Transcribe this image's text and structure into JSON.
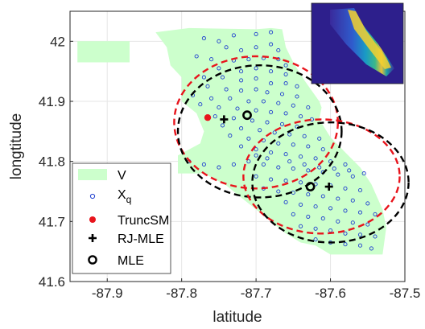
{
  "chart_data": {
    "type": "scatter",
    "title": "",
    "xlabel": "latitude",
    "ylabel": "longtitude",
    "xlim": [
      -87.95,
      -87.5
    ],
    "ylim": [
      41.6,
      42.05
    ],
    "xticks": [
      -87.9,
      -87.8,
      -87.7,
      -87.6,
      -87.5
    ],
    "yticks": [
      41.6,
      41.7,
      41.8,
      41.9,
      42
    ],
    "xtick_labels": [
      "-87.9",
      "-87.8",
      "-87.7",
      "-87.6",
      "-87.5"
    ],
    "ytick_labels": [
      "41.6",
      "41.7",
      "41.8",
      "41.9",
      "42"
    ],
    "grid": true,
    "legend_position": "bottom-left",
    "legend": [
      {
        "key": "V",
        "label": "V"
      },
      {
        "key": "Xq",
        "label": "X",
        "sub": "q"
      },
      {
        "key": "TruncSM",
        "label": "TruncSM"
      },
      {
        "key": "RJMLE",
        "label": "RJ-MLE"
      },
      {
        "key": "MLE",
        "label": "MLE"
      }
    ],
    "colors": {
      "region": "#ccffcc",
      "points": "#1f3fcf",
      "truncsm": "#e8141c",
      "rjmle": "#000000",
      "mle": "#000000",
      "ellipse_red": "#e8141c",
      "ellipse_black": "#000000",
      "grid": "#e6e6e6"
    },
    "region_V": [
      [
        -87.835,
        42.015
      ],
      [
        -87.79,
        42.022
      ],
      [
        -87.7,
        42.02
      ],
      [
        -87.68,
        42.022
      ],
      [
        -87.665,
        42.02
      ],
      [
        -87.66,
        41.99
      ],
      [
        -87.65,
        41.965
      ],
      [
        -87.635,
        41.935
      ],
      [
        -87.615,
        41.9
      ],
      [
        -87.612,
        41.89
      ],
      [
        -87.615,
        41.87
      ],
      [
        -87.6,
        41.84
      ],
      [
        -87.58,
        41.815
      ],
      [
        -87.56,
        41.79
      ],
      [
        -87.545,
        41.762
      ],
      [
        -87.53,
        41.72
      ],
      [
        -87.525,
        41.69
      ],
      [
        -87.53,
        41.645
      ],
      [
        -87.56,
        41.645
      ],
      [
        -87.6,
        41.645
      ],
      [
        -87.62,
        41.66
      ],
      [
        -87.64,
        41.665
      ],
      [
        -87.66,
        41.68
      ],
      [
        -87.68,
        41.7
      ],
      [
        -87.7,
        41.72
      ],
      [
        -87.72,
        41.74
      ],
      [
        -87.74,
        41.76
      ],
      [
        -87.77,
        41.78
      ],
      [
        -87.805,
        41.78
      ],
      [
        -87.805,
        41.81
      ],
      [
        -87.775,
        41.83
      ],
      [
        -87.77,
        41.85
      ],
      [
        -87.78,
        41.88
      ],
      [
        -87.8,
        41.9
      ],
      [
        -87.8,
        41.94
      ],
      [
        -87.815,
        41.96
      ],
      [
        -87.82,
        41.99
      ]
    ],
    "region_V_ohare": [
      [
        -87.94,
        42.0
      ],
      [
        -87.87,
        42.0
      ],
      [
        -87.87,
        41.965
      ],
      [
        -87.94,
        41.965
      ]
    ],
    "truncsm": [
      {
        "x": -87.765,
        "y": 41.873
      }
    ],
    "rj_mle": [
      {
        "x": -87.743,
        "y": 41.87
      },
      {
        "x": -87.602,
        "y": 41.758
      }
    ],
    "mle": [
      {
        "x": -87.712,
        "y": 41.877
      },
      {
        "x": -87.627,
        "y": 41.758
      }
    ],
    "ellipses": [
      {
        "color": "red",
        "cx": -87.7,
        "cy": 41.865,
        "rx": 0.11,
        "ry": 0.11
      },
      {
        "color": "black",
        "cx": -87.695,
        "cy": 41.85,
        "rx": 0.11,
        "ry": 0.11
      },
      {
        "color": "red",
        "cx": -87.612,
        "cy": 41.775,
        "rx": 0.105,
        "ry": 0.095
      },
      {
        "color": "black",
        "cx": -87.6,
        "cy": 41.765,
        "rx": 0.105,
        "ry": 0.1
      }
    ],
    "samples": [
      [
        -87.77,
        42.005
      ],
      [
        -87.75,
        42.0
      ],
      [
        -87.73,
        42.01
      ],
      [
        -87.7,
        42.012
      ],
      [
        -87.68,
        42.015
      ],
      [
        -87.74,
        41.99
      ],
      [
        -87.72,
        41.985
      ],
      [
        -87.7,
        41.99
      ],
      [
        -87.68,
        41.995
      ],
      [
        -87.67,
        41.985
      ],
      [
        -87.78,
        41.975
      ],
      [
        -87.76,
        41.97
      ],
      [
        -87.73,
        41.968
      ],
      [
        -87.71,
        41.97
      ],
      [
        -87.69,
        41.972
      ],
      [
        -87.67,
        41.97
      ],
      [
        -87.66,
        41.96
      ],
      [
        -87.75,
        41.955
      ],
      [
        -87.72,
        41.95
      ],
      [
        -87.7,
        41.955
      ],
      [
        -87.68,
        41.95
      ],
      [
        -87.66,
        41.945
      ],
      [
        -87.77,
        41.94
      ],
      [
        -87.745,
        41.94
      ],
      [
        -87.72,
        41.935
      ],
      [
        -87.7,
        41.938
      ],
      [
        -87.68,
        41.93
      ],
      [
        -87.66,
        41.93
      ],
      [
        -87.645,
        41.925
      ],
      [
        -87.765,
        41.925
      ],
      [
        -87.74,
        41.92
      ],
      [
        -87.72,
        41.918
      ],
      [
        -87.7,
        41.92
      ],
      [
        -87.685,
        41.915
      ],
      [
        -87.665,
        41.912
      ],
      [
        -87.645,
        41.908
      ],
      [
        -87.785,
        41.91
      ],
      [
        -87.76,
        41.905
      ],
      [
        -87.735,
        41.905
      ],
      [
        -87.71,
        41.9
      ],
      [
        -87.69,
        41.9
      ],
      [
        -87.67,
        41.897
      ],
      [
        -87.65,
        41.893
      ],
      [
        -87.63,
        41.89
      ],
      [
        -87.775,
        41.895
      ],
      [
        -87.75,
        41.89
      ],
      [
        -87.725,
        41.888
      ],
      [
        -87.7,
        41.885
      ],
      [
        -87.68,
        41.882
      ],
      [
        -87.66,
        41.88
      ],
      [
        -87.64,
        41.875
      ],
      [
        -87.625,
        41.87
      ],
      [
        -87.755,
        41.875
      ],
      [
        -87.73,
        41.872
      ],
      [
        -87.705,
        41.868
      ],
      [
        -87.685,
        41.865
      ],
      [
        -87.665,
        41.862
      ],
      [
        -87.645,
        41.858
      ],
      [
        -87.745,
        41.86
      ],
      [
        -87.72,
        41.855
      ],
      [
        -87.695,
        41.852
      ],
      [
        -87.675,
        41.848
      ],
      [
        -87.655,
        41.845
      ],
      [
        -87.635,
        41.842
      ],
      [
        -87.615,
        41.838
      ],
      [
        -87.735,
        41.843
      ],
      [
        -87.71,
        41.838
      ],
      [
        -87.69,
        41.835
      ],
      [
        -87.67,
        41.83
      ],
      [
        -87.65,
        41.828
      ],
      [
        -87.63,
        41.825
      ],
      [
        -87.61,
        41.82
      ],
      [
        -87.72,
        41.825
      ],
      [
        -87.7,
        41.82
      ],
      [
        -87.68,
        41.815
      ],
      [
        -87.66,
        41.812
      ],
      [
        -87.64,
        41.808
      ],
      [
        -87.62,
        41.805
      ],
      [
        -87.6,
        41.8
      ],
      [
        -87.58,
        41.795
      ],
      [
        -87.79,
        41.8
      ],
      [
        -87.77,
        41.795
      ],
      [
        -87.75,
        41.79
      ],
      [
        -87.73,
        41.795
      ],
      [
        -87.71,
        41.8
      ],
      [
        -87.69,
        41.795
      ],
      [
        -87.67,
        41.79
      ],
      [
        -87.65,
        41.788
      ],
      [
        -87.63,
        41.785
      ],
      [
        -87.61,
        41.782
      ],
      [
        -87.59,
        41.778
      ],
      [
        -87.57,
        41.775
      ],
      [
        -87.7,
        41.775
      ],
      [
        -87.68,
        41.77
      ],
      [
        -87.66,
        41.768
      ],
      [
        -87.64,
        41.765
      ],
      [
        -87.62,
        41.762
      ],
      [
        -87.6,
        41.76
      ],
      [
        -87.58,
        41.755
      ],
      [
        -87.56,
        41.752
      ],
      [
        -87.69,
        41.755
      ],
      [
        -87.67,
        41.75
      ],
      [
        -87.65,
        41.748
      ],
      [
        -87.63,
        41.745
      ],
      [
        -87.61,
        41.742
      ],
      [
        -87.59,
        41.738
      ],
      [
        -87.57,
        41.735
      ],
      [
        -87.55,
        41.73
      ],
      [
        -87.66,
        41.732
      ],
      [
        -87.64,
        41.728
      ],
      [
        -87.62,
        41.725
      ],
      [
        -87.6,
        41.722
      ],
      [
        -87.58,
        41.718
      ],
      [
        -87.56,
        41.715
      ],
      [
        -87.54,
        41.712
      ],
      [
        -87.65,
        41.712
      ],
      [
        -87.63,
        41.708
      ],
      [
        -87.61,
        41.705
      ],
      [
        -87.59,
        41.7
      ],
      [
        -87.57,
        41.698
      ],
      [
        -87.55,
        41.695
      ],
      [
        -87.64,
        41.692
      ],
      [
        -87.62,
        41.688
      ],
      [
        -87.6,
        41.685
      ],
      [
        -87.58,
        41.68
      ],
      [
        -87.56,
        41.678
      ],
      [
        -87.54,
        41.675
      ],
      [
        -87.62,
        41.67
      ],
      [
        -87.6,
        41.665
      ],
      [
        -87.58,
        41.662
      ],
      [
        -87.56,
        41.66
      ],
      [
        -87.545,
        41.655
      ],
      [
        -87.7,
        41.81
      ],
      [
        -87.685,
        41.805
      ],
      [
        -87.655,
        41.8
      ],
      [
        -87.635,
        41.795
      ],
      [
        -87.615,
        41.79
      ],
      [
        -87.595,
        41.788
      ],
      [
        -87.575,
        41.785
      ],
      [
        -87.555,
        41.78
      ]
    ]
  }
}
